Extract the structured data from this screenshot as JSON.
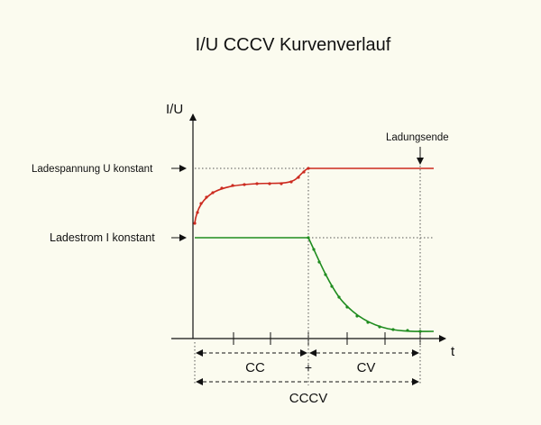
{
  "title": "I/U CCCV Kurvenverlauf",
  "axes": {
    "y_label": "I/U",
    "x_label": "t"
  },
  "levels": {
    "voltage_label": "Ladespannung U konstant",
    "current_label": "Ladestrom I konstant"
  },
  "end_marker_label": "Ladungsende",
  "phases": {
    "cc": "CC",
    "separator": "+",
    "cv": "CV",
    "total": "CCCV"
  },
  "colors": {
    "background": "#fbfbef",
    "voltage_curve": "#cc2a1f",
    "current_curve": "#1f8c1f",
    "axis": "#111111"
  }
}
